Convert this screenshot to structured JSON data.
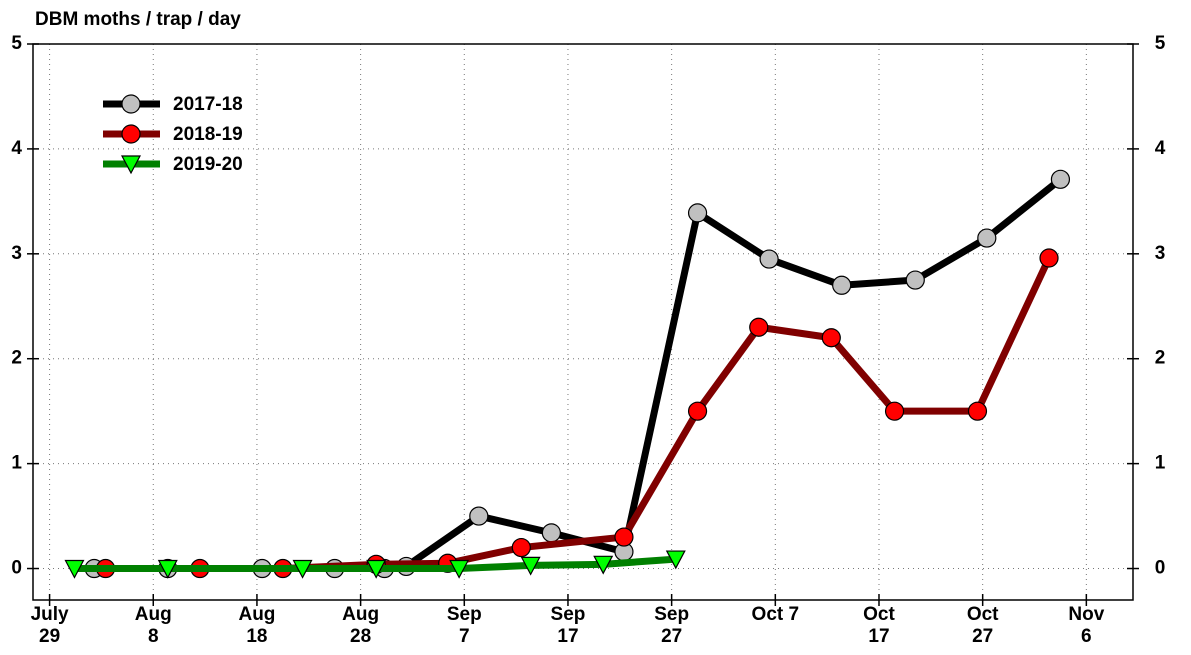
{
  "chart_data": {
    "type": "line",
    "title": "DBM moths / trap / day",
    "xlim": [
      -1.6,
      104.5
    ],
    "ylim": [
      -0.3,
      5
    ],
    "xticks": [
      {
        "value": 0,
        "label": "July 29"
      },
      {
        "value": 10,
        "label": "Aug 8"
      },
      {
        "value": 20,
        "label": "Aug 18"
      },
      {
        "value": 30,
        "label": "Aug 28"
      },
      {
        "value": 40,
        "label": "Sep 7"
      },
      {
        "value": 50,
        "label": "Sep 17"
      },
      {
        "value": 60,
        "label": "Sep 27"
      },
      {
        "value": 70,
        "label": "Oct 7"
      },
      {
        "value": 80,
        "label": "Oct 17"
      },
      {
        "value": 90,
        "label": "Oct 27"
      },
      {
        "value": 100,
        "label": "Nov 6"
      }
    ],
    "yticks": [
      0,
      1,
      2,
      3,
      4,
      5
    ],
    "grid": true,
    "legend": "upper left",
    "series": [
      {
        "name": "2017-18",
        "color": "#000000",
        "marker": "circle",
        "marker_color": "#c0c0c0",
        "x": [
          4.3,
          11.4,
          20.5,
          27.5,
          32.3,
          34.4,
          41.4,
          48.4,
          55.4,
          62.5,
          69.4,
          76.4,
          83.5,
          90.4,
          97.5
        ],
        "values": [
          0,
          0,
          0,
          0,
          0,
          0.02,
          0.5,
          0.34,
          0.16,
          3.39,
          2.95,
          2.7,
          2.75,
          3.15,
          3.71
        ]
      },
      {
        "name": "2018-19",
        "color": "#800000",
        "marker": "circle",
        "marker_color": "#ff0000",
        "x": [
          5.4,
          14.5,
          22.5,
          31.5,
          38.4,
          45.5,
          55.4,
          62.5,
          68.4,
          75.4,
          81.5,
          89.5,
          96.4
        ],
        "values": [
          0,
          0,
          0,
          0.04,
          0.05,
          0.2,
          0.3,
          1.5,
          2.3,
          2.2,
          1.5,
          1.5,
          2.96
        ]
      },
      {
        "name": "2019-20",
        "color": "#008000",
        "marker": "triangle",
        "marker_color": "#00ff00",
        "x": [
          2.4,
          11.4,
          24.4,
          31.5,
          39.5,
          46.4,
          53.4,
          60.4
        ],
        "values": [
          0,
          0,
          0,
          0,
          0,
          0.03,
          0.04,
          0.09
        ]
      }
    ]
  }
}
